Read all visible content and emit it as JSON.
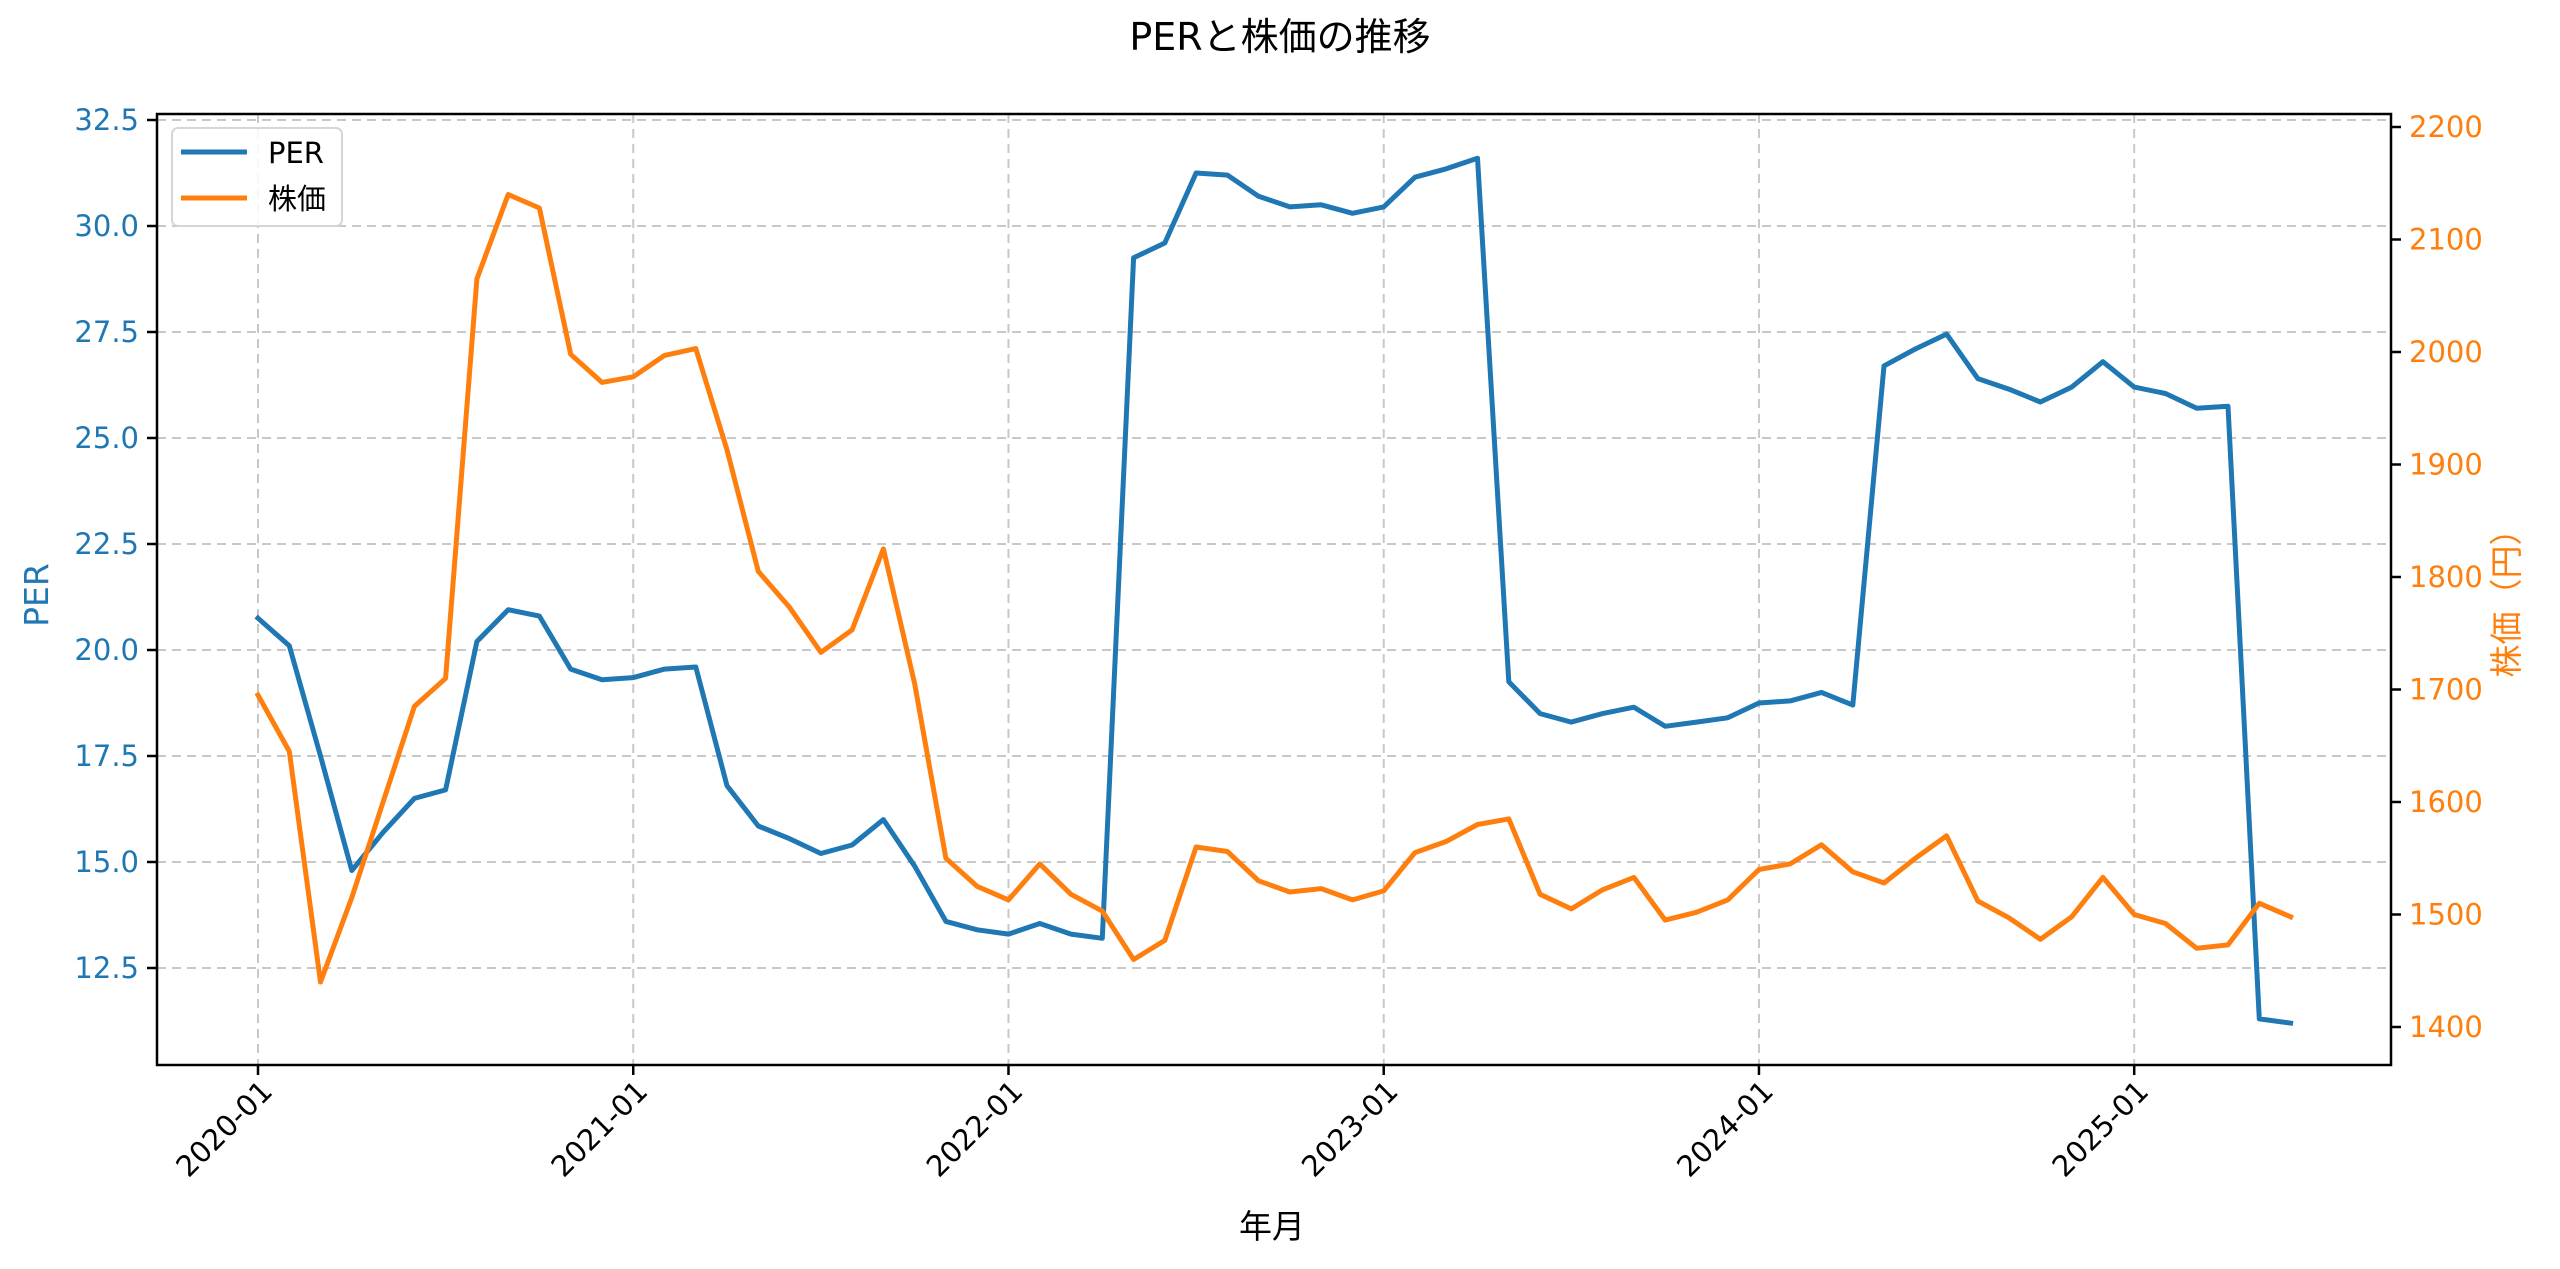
{
  "chart_data": {
    "type": "line",
    "title": "PERと株価の推移",
    "xlabel": "年月",
    "ylabel": "PER",
    "ylabel_right": "株価（円）",
    "x_tick_labels": [
      "2020-01",
      "2021-01",
      "2022-01",
      "2023-01",
      "2024-01",
      "2025-01"
    ],
    "y_left_ticks": [
      "12.5",
      "15.0",
      "17.5",
      "20.0",
      "22.5",
      "25.0",
      "27.5",
      "30.0",
      "32.5"
    ],
    "y_right_ticks": [
      "1400",
      "1500",
      "1600",
      "1700",
      "1800",
      "1900",
      "2000",
      "2100",
      "2200"
    ],
    "ylim_left": [
      10.5,
      32.65
    ],
    "ylim_right": [
      1368,
      2211
    ],
    "grid": true,
    "legend_position": "upper left",
    "x": [
      "2020-01",
      "2020-02",
      "2020-03",
      "2020-04",
      "2020-05",
      "2020-06",
      "2020-07",
      "2020-08",
      "2020-09",
      "2020-10",
      "2020-11",
      "2020-12",
      "2021-01",
      "2021-02",
      "2021-03",
      "2021-04",
      "2021-05",
      "2021-06",
      "2021-07",
      "2021-08",
      "2021-09",
      "2021-10",
      "2021-11",
      "2021-12",
      "2022-01",
      "2022-02",
      "2022-03",
      "2022-04",
      "2022-05",
      "2022-06",
      "2022-07",
      "2022-08",
      "2022-09",
      "2022-10",
      "2022-11",
      "2022-12",
      "2023-01",
      "2023-02",
      "2023-03",
      "2023-04",
      "2023-05",
      "2023-06",
      "2023-07",
      "2023-08",
      "2023-09",
      "2023-10",
      "2023-11",
      "2023-12",
      "2024-01",
      "2024-02",
      "2024-03",
      "2024-04",
      "2024-05",
      "2024-06",
      "2024-07",
      "2024-08",
      "2024-09",
      "2024-10",
      "2024-11",
      "2024-12",
      "2025-01",
      "2025-02",
      "2025-03",
      "2025-04",
      "2025-05",
      "2025-06"
    ],
    "series": [
      {
        "name": "PER",
        "axis": "left",
        "color": "#1f77b4",
        "values": [
          20.75,
          20.1,
          17.5,
          14.8,
          15.7,
          16.5,
          16.7,
          20.2,
          20.95,
          20.8,
          19.55,
          19.3,
          19.35,
          19.55,
          19.6,
          16.8,
          15.85,
          15.55,
          15.2,
          15.4,
          16.0,
          14.9,
          13.6,
          13.4,
          13.3,
          13.55,
          13.3,
          13.2,
          29.25,
          29.6,
          31.25,
          31.2,
          30.7,
          30.45,
          30.5,
          30.3,
          30.45,
          31.15,
          31.35,
          31.6,
          19.25,
          18.5,
          18.3,
          18.5,
          18.65,
          18.2,
          18.3,
          18.4,
          18.75,
          18.8,
          19.0,
          18.7,
          26.7,
          27.1,
          27.45,
          26.4,
          26.15,
          25.85,
          26.2,
          26.8,
          26.2,
          26.05,
          25.7,
          25.75,
          11.3,
          11.2
        ]
      },
      {
        "name": "株価",
        "axis": "right",
        "color": "#ff7f0e",
        "values": [
          1695,
          1645,
          1440,
          1515,
          1600,
          1685,
          1710,
          2065,
          2140,
          2128,
          1998,
          1973,
          1978,
          1997,
          2003,
          1913,
          1805,
          1773,
          1733,
          1753,
          1825,
          1705,
          1550,
          1525,
          1513,
          1545,
          1518,
          1503,
          1460,
          1477,
          1560,
          1556,
          1530,
          1520,
          1523,
          1513,
          1521,
          1555,
          1565,
          1580,
          1585,
          1518,
          1505,
          1522,
          1533,
          1495,
          1502,
          1513,
          1540,
          1545,
          1562,
          1538,
          1528,
          1550,
          1570,
          1512,
          1497,
          1478,
          1498,
          1533,
          1500,
          1492,
          1470,
          1473,
          1510,
          1498
        ]
      }
    ]
  },
  "legend": {
    "items": [
      {
        "label": "PER",
        "color": "#1f77b4"
      },
      {
        "label": "株価",
        "color": "#ff7f0e"
      }
    ]
  }
}
